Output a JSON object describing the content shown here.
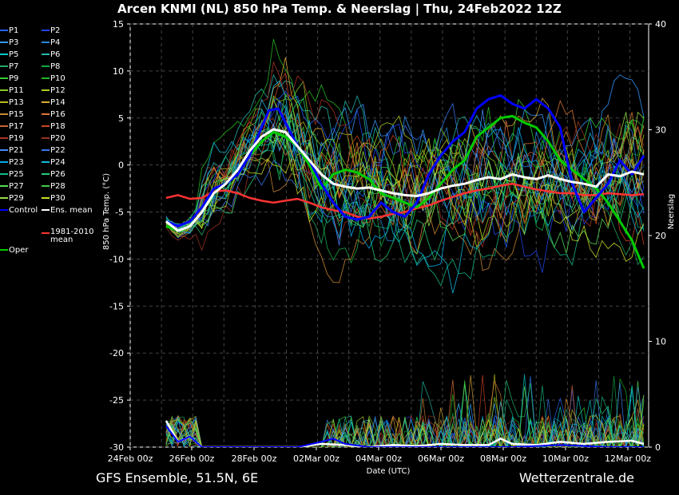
{
  "title": "Arcen KNMI  (NL)  850 hPa Temp. & Neerslag | Thu, 24Feb2022 12Z",
  "footer": {
    "left": "GFS Ensemble, 51.5N, 6E",
    "right": "Wetterzentrale.de"
  },
  "colors": {
    "control": "#0000ff",
    "ens_mean": "#ffffff",
    "climate_mean": "#ff3333",
    "oper": "#00cc00",
    "palette": [
      "#2060ff",
      "#3399ff",
      "#00cccc",
      "#22bbaa",
      "#22aa66",
      "#33cc33",
      "#88cc22",
      "#bbbb22",
      "#dddd33",
      "#ddaa33",
      "#cc8833",
      "#dd7733",
      "#cc4422",
      "#aa3322",
      "#4488ff",
      "#00aaee",
      "#11bb88",
      "#55dd55",
      "#99dd44",
      "#ccdd22"
    ]
  },
  "legend": [
    {
      "label": "P1",
      "color": "#2060ff"
    },
    {
      "label": "P2",
      "color": "#2244ee"
    },
    {
      "label": "P3",
      "color": "#3399ff"
    },
    {
      "label": "P4",
      "color": "#2288dd"
    },
    {
      "label": "P5",
      "color": "#00cccc"
    },
    {
      "label": "P6",
      "color": "#22bbaa"
    },
    {
      "label": "P7",
      "color": "#22aa66"
    },
    {
      "label": "P8",
      "color": "#11aa44"
    },
    {
      "label": "P9",
      "color": "#33cc33"
    },
    {
      "label": "P10",
      "color": "#22bb22"
    },
    {
      "label": "P11",
      "color": "#88cc22"
    },
    {
      "label": "P12",
      "color": "#aacc22"
    },
    {
      "label": "P13",
      "color": "#bbbb22"
    },
    {
      "label": "P14",
      "color": "#ddaa33"
    },
    {
      "label": "P15",
      "color": "#cc8833"
    },
    {
      "label": "P16",
      "color": "#dd7733"
    },
    {
      "label": "P17",
      "color": "#cc6633"
    },
    {
      "label": "P18",
      "color": "#cc4422"
    },
    {
      "label": "P19",
      "color": "#aa3322"
    },
    {
      "label": "P20",
      "color": "#993322"
    },
    {
      "label": "P21",
      "color": "#4488ff"
    },
    {
      "label": "P22",
      "color": "#3377ee"
    },
    {
      "label": "P23",
      "color": "#00aaee"
    },
    {
      "label": "P24",
      "color": "#11bbdd"
    },
    {
      "label": "P25",
      "color": "#11bb88"
    },
    {
      "label": "P26",
      "color": "#22cc77"
    },
    {
      "label": "P27",
      "color": "#55dd55"
    },
    {
      "label": "P28",
      "color": "#44cc44"
    },
    {
      "label": "P29",
      "color": "#99dd44"
    },
    {
      "label": "P30",
      "color": "#ccdd22"
    },
    {
      "label": "Control",
      "color": "#0000ff"
    },
    {
      "label": "Ens. mean",
      "color": "#ffffff"
    },
    {
      "label": "Oper",
      "color": "#00cc00"
    },
    {
      "label": "1981-2010 mean",
      "color": "#ff3333"
    }
  ],
  "chart_data": {
    "type": "line",
    "ylabel": "850 hPa Temp. (°C)",
    "y2label": "Neerslag (mm)",
    "xlabel": "Date (UTC)",
    "ylim": [
      -30,
      15
    ],
    "y2lim": [
      0,
      40
    ],
    "xlim_days": [
      0,
      17
    ],
    "grid": true,
    "x_ticks": [
      "24Feb 00z",
      "26Feb 00z",
      "28Feb 00z",
      "02Mar 00z",
      "04Mar 00z",
      "06Mar 00z",
      "08Mar 00z",
      "10Mar 00z",
      "12Mar 00z"
    ],
    "y_ticks": [
      15,
      10,
      5,
      0,
      -5,
      -10,
      -15,
      -20,
      -25,
      -30
    ],
    "y2_ticks": [
      40,
      30,
      20,
      10,
      0
    ],
    "temperature_series": [
      {
        "name": "Control",
        "role": "control",
        "points": [
          [
            1.5,
            -6
          ],
          [
            2,
            -6.5
          ],
          [
            2.5,
            -6
          ],
          [
            3,
            -4.5
          ],
          [
            3.5,
            -2.5
          ],
          [
            4,
            -2
          ],
          [
            4.5,
            -1
          ],
          [
            5,
            1
          ],
          [
            5.5,
            4
          ],
          [
            5.8,
            5.8
          ],
          [
            6.2,
            6
          ],
          [
            6.6,
            4
          ],
          [
            7,
            2
          ],
          [
            7.5,
            0.5
          ],
          [
            8,
            -2
          ],
          [
            8.5,
            -4
          ],
          [
            9,
            -5.5
          ],
          [
            9.5,
            -5.8
          ],
          [
            10,
            -5.5
          ],
          [
            10.5,
            -4
          ],
          [
            11,
            -5
          ],
          [
            11.5,
            -5.5
          ],
          [
            12,
            -4
          ],
          [
            12.5,
            -1
          ],
          [
            13,
            1
          ],
          [
            13.5,
            2.5
          ],
          [
            14,
            3.5
          ],
          [
            14.5,
            6
          ],
          [
            15,
            7
          ],
          [
            15.5,
            7.4
          ],
          [
            16,
            6.5
          ],
          [
            16.5,
            6
          ],
          [
            17,
            7
          ],
          [
            17.5,
            6
          ],
          [
            18,
            4
          ],
          [
            18.5,
            -2
          ],
          [
            19,
            -5
          ],
          [
            19.5,
            -3.5
          ],
          [
            20,
            -2
          ],
          [
            20.5,
            0.5
          ],
          [
            21,
            -1
          ],
          [
            21.5,
            1
          ]
        ]
      },
      {
        "name": "Ens. mean",
        "role": "mean",
        "points": [
          [
            1.5,
            -6
          ],
          [
            2,
            -7
          ],
          [
            2.5,
            -6.5
          ],
          [
            3,
            -5
          ],
          [
            3.5,
            -3
          ],
          [
            4,
            -2
          ],
          [
            4.5,
            -0.5
          ],
          [
            5,
            1.5
          ],
          [
            5.5,
            3
          ],
          [
            6,
            3.8
          ],
          [
            6.5,
            3.5
          ],
          [
            7,
            2
          ],
          [
            7.5,
            0.5
          ],
          [
            8,
            -1
          ],
          [
            8.5,
            -2
          ],
          [
            9,
            -2.3
          ],
          [
            9.5,
            -2.5
          ],
          [
            10,
            -2.4
          ],
          [
            10.5,
            -2.7
          ],
          [
            11,
            -3
          ],
          [
            11.5,
            -3.2
          ],
          [
            12,
            -3.3
          ],
          [
            12.5,
            -3
          ],
          [
            13,
            -2.5
          ],
          [
            13.5,
            -2.2
          ],
          [
            14,
            -2
          ],
          [
            14.5,
            -1.6
          ],
          [
            15,
            -1.3
          ],
          [
            15.5,
            -1.5
          ],
          [
            16,
            -1
          ],
          [
            16.5,
            -1.3
          ],
          [
            17,
            -1.5
          ],
          [
            17.5,
            -1.1
          ],
          [
            18,
            -1.5
          ],
          [
            18.5,
            -1.8
          ],
          [
            19,
            -2
          ],
          [
            19.5,
            -2.3
          ],
          [
            20,
            -1
          ],
          [
            20.5,
            -1.2
          ],
          [
            21,
            -0.7
          ],
          [
            21.5,
            -1
          ]
        ]
      },
      {
        "name": "Oper",
        "role": "oper",
        "points": [
          [
            1.5,
            -6.5
          ],
          [
            2,
            -7
          ],
          [
            2.5,
            -6.5
          ],
          [
            3,
            -5
          ],
          [
            3.5,
            -3
          ],
          [
            4,
            -2
          ],
          [
            4.5,
            -1
          ],
          [
            5,
            1
          ],
          [
            5.5,
            2.5
          ],
          [
            6,
            3.5
          ],
          [
            6.5,
            3
          ],
          [
            7,
            2
          ],
          [
            7.5,
            0
          ],
          [
            8,
            -2.5
          ],
          [
            8.5,
            -1
          ],
          [
            9,
            -0.5
          ],
          [
            9.5,
            -0.8
          ],
          [
            10,
            -1.5
          ],
          [
            10.5,
            -3
          ],
          [
            11,
            -3.5
          ],
          [
            11.5,
            -4
          ],
          [
            12,
            -4.5
          ],
          [
            12.5,
            -3.5
          ],
          [
            13,
            -2
          ],
          [
            13.5,
            -0.5
          ],
          [
            14,
            0.5
          ],
          [
            14.5,
            3
          ],
          [
            15,
            4
          ],
          [
            15.5,
            5
          ],
          [
            16,
            5.2
          ],
          [
            16.5,
            4.5
          ],
          [
            17,
            4
          ],
          [
            17.5,
            2.5
          ],
          [
            18,
            0.5
          ],
          [
            18.5,
            -0.5
          ],
          [
            19,
            -1.5
          ],
          [
            19.5,
            -2.5
          ],
          [
            20,
            -4
          ],
          [
            20.5,
            -6
          ],
          [
            21,
            -8
          ],
          [
            21.5,
            -11
          ]
        ]
      },
      {
        "name": "1981-2010 mean",
        "role": "climate",
        "points": [
          [
            1.5,
            -3.5
          ],
          [
            2,
            -3.2
          ],
          [
            2.5,
            -3.6
          ],
          [
            3,
            -3.5
          ],
          [
            3.5,
            -2.8
          ],
          [
            4,
            -2.7
          ],
          [
            4.5,
            -3
          ],
          [
            5,
            -3.5
          ],
          [
            5.5,
            -3.8
          ],
          [
            6,
            -4
          ],
          [
            6.5,
            -3.8
          ],
          [
            7,
            -3.6
          ],
          [
            7.5,
            -4
          ],
          [
            8,
            -4.5
          ],
          [
            8.5,
            -4.8
          ],
          [
            9,
            -5
          ],
          [
            9.5,
            -5.5
          ],
          [
            10,
            -5.7
          ],
          [
            10.5,
            -5.5
          ],
          [
            11,
            -5.2
          ],
          [
            11.5,
            -5
          ],
          [
            12,
            -4.6
          ],
          [
            12.5,
            -4.3
          ],
          [
            13,
            -3.8
          ],
          [
            13.5,
            -3.4
          ],
          [
            14,
            -3
          ],
          [
            14.5,
            -2.7
          ],
          [
            15,
            -2.5
          ],
          [
            15.5,
            -2.2
          ],
          [
            16,
            -2
          ],
          [
            16.5,
            -2.3
          ],
          [
            17,
            -2.6
          ],
          [
            17.5,
            -2.8
          ],
          [
            18,
            -3
          ],
          [
            18.5,
            -3
          ],
          [
            19,
            -3.2
          ],
          [
            19.5,
            -3.2
          ],
          [
            20,
            -3
          ],
          [
            20.5,
            -3.1
          ],
          [
            21,
            -3.2
          ],
          [
            21.5,
            -3.1
          ]
        ]
      }
    ],
    "members_count": 30,
    "precip_series_note": "",
    "precip_mean_points": [
      [
        1.5,
        2.5
      ],
      [
        2,
        0.5
      ],
      [
        2.5,
        1
      ],
      [
        3,
        0
      ],
      [
        5,
        0
      ],
      [
        7,
        0
      ],
      [
        8,
        0.3
      ],
      [
        9,
        0.2
      ],
      [
        10,
        0
      ],
      [
        11,
        0.2
      ],
      [
        12,
        0.1
      ],
      [
        13,
        0.3
      ],
      [
        14,
        0.2
      ],
      [
        15,
        0.2
      ],
      [
        15.5,
        0.8
      ],
      [
        16,
        0.3
      ],
      [
        17,
        0.2
      ],
      [
        18,
        0.5
      ],
      [
        19,
        0.3
      ],
      [
        20,
        0.5
      ],
      [
        21,
        0.6
      ],
      [
        21.5,
        0.3
      ]
    ],
    "precip_control_points": [
      [
        1.5,
        2
      ],
      [
        2,
        0.5
      ],
      [
        2.5,
        1
      ],
      [
        3,
        0
      ],
      [
        7,
        0
      ],
      [
        8,
        0.5
      ],
      [
        8.5,
        0.8
      ],
      [
        9,
        0.3
      ],
      [
        10,
        0
      ],
      [
        12,
        0
      ],
      [
        14,
        0
      ],
      [
        16,
        0
      ],
      [
        18,
        0.2
      ],
      [
        20,
        0
      ],
      [
        21.5,
        0
      ]
    ]
  }
}
